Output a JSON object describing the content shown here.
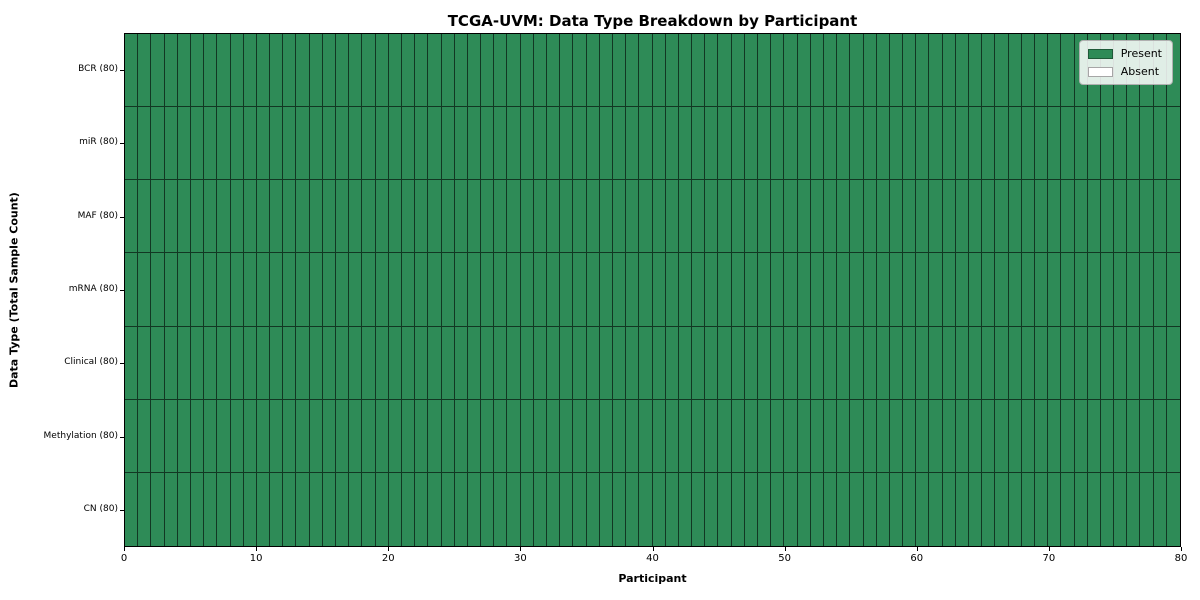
{
  "figure": {
    "title": "TCGA-UVM: Data Type Breakdown by Participant",
    "xlabel": "Participant",
    "ylabel": "Data Type (Total Sample Count)"
  },
  "legend": {
    "items": [
      {
        "label": "Present",
        "color": "#2e8b57"
      },
      {
        "label": "Absent",
        "color": "#ffffff"
      }
    ]
  },
  "chart_data": {
    "type": "heatmap",
    "title": "TCGA-UVM: Data Type Breakdown by Participant",
    "xlabel": "Participant",
    "ylabel": "Data Type (Total Sample Count)",
    "x_range": [
      0,
      80
    ],
    "x_ticks": [
      0,
      10,
      20,
      30,
      40,
      50,
      60,
      70,
      80
    ],
    "n_participants": 80,
    "rows": [
      {
        "label": "BCR (80)",
        "data_type": "BCR",
        "total_samples": 80,
        "present_count": 80,
        "absent_count": 0
      },
      {
        "label": "miR (80)",
        "data_type": "miR",
        "total_samples": 80,
        "present_count": 80,
        "absent_count": 0
      },
      {
        "label": "MAF (80)",
        "data_type": "MAF",
        "total_samples": 80,
        "present_count": 80,
        "absent_count": 0
      },
      {
        "label": "mRNA (80)",
        "data_type": "mRNA",
        "total_samples": 80,
        "present_count": 80,
        "absent_count": 0
      },
      {
        "label": "Clinical (80)",
        "data_type": "Clinical",
        "total_samples": 80,
        "present_count": 80,
        "absent_count": 0
      },
      {
        "label": "Methylation (80)",
        "data_type": "Methylation",
        "total_samples": 80,
        "present_count": 80,
        "absent_count": 0
      },
      {
        "label": "CN (80)",
        "data_type": "CN",
        "total_samples": 80,
        "present_count": 80,
        "absent_count": 0
      }
    ],
    "cell_colors": {
      "present": "#2e8b57",
      "absent": "#ffffff"
    },
    "all_cells_present": true,
    "grid_line_color": "#1a1a1a",
    "legend_position": "upper right",
    "legend_entries": [
      "Present",
      "Absent"
    ]
  }
}
